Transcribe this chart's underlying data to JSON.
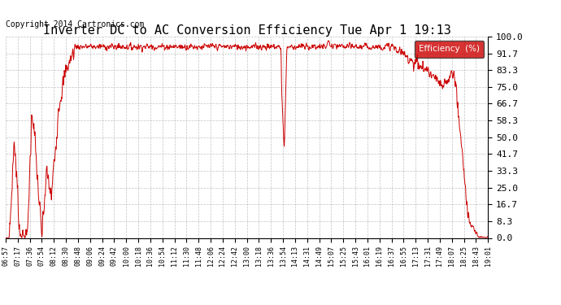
{
  "title": "Inverter DC to AC Conversion Efficiency Tue Apr 1 19:13",
  "copyright": "Copyright 2014 Cartronics.com",
  "legend_label": "Efficiency  (%)",
  "legend_bg": "#cc0000",
  "legend_text_color": "#ffffff",
  "line_color": "#cc0000",
  "bg_color": "#ffffff",
  "plot_bg_color": "#ffffff",
  "grid_color": "#bbbbbb",
  "ylim": [
    0.0,
    100.0
  ],
  "yticks": [
    0.0,
    8.3,
    16.7,
    25.0,
    33.3,
    41.7,
    50.0,
    58.3,
    66.7,
    75.0,
    83.3,
    91.7,
    100.0
  ],
  "ytick_labels": [
    "0.0",
    "8.3",
    "16.7",
    "25.0",
    "33.3",
    "41.7",
    "50.0",
    "58.3",
    "66.7",
    "75.0",
    "83.3",
    "91.7",
    "100.0"
  ],
  "xtick_labels": [
    "06:57",
    "07:17",
    "07:36",
    "07:54",
    "08:12",
    "08:30",
    "08:48",
    "09:06",
    "09:24",
    "09:42",
    "10:00",
    "10:18",
    "10:36",
    "10:54",
    "11:12",
    "11:30",
    "11:48",
    "12:06",
    "12:24",
    "12:42",
    "13:00",
    "13:18",
    "13:36",
    "13:54",
    "14:13",
    "14:31",
    "14:49",
    "15:07",
    "15:25",
    "15:43",
    "16:01",
    "16:19",
    "16:37",
    "16:55",
    "17:13",
    "17:31",
    "17:49",
    "18:07",
    "18:25",
    "18:43",
    "19:01"
  ]
}
